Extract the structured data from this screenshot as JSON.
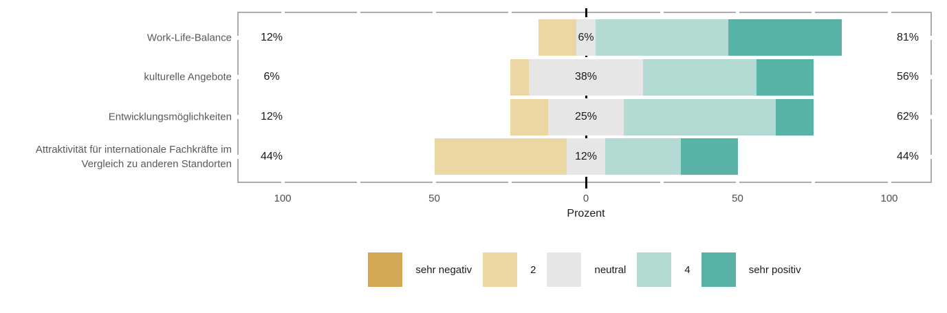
{
  "chart_data": {
    "type": "diverging_stacked_bar",
    "title": "",
    "xlabel": "Prozent",
    "grid": false,
    "legend_position": "bottom",
    "axis_range": [
      -115,
      114
    ],
    "x_ticks": {
      "values": [
        -100,
        -50,
        0,
        50,
        100
      ],
      "labels": [
        "100",
        "50",
        "0",
        "50",
        "100"
      ]
    },
    "categories": [
      "Work-Life-Balance",
      "kulturelle Angebote",
      "Entwicklungsmöglichkeiten",
      "Attraktivität für internationale Fachkräfte im Vergleich zu anderen Standorten"
    ],
    "levels": [
      {
        "name": "sehr negativ",
        "color": "#d3a855"
      },
      {
        "name": "2",
        "color": "#ebd7a4"
      },
      {
        "name": "neutral",
        "color": "#e6e6e6"
      },
      {
        "name": "4",
        "color": "#b3dbd3"
      },
      {
        "name": "sehr positiv",
        "color": "#58b2a6"
      }
    ],
    "series": [
      {
        "name": "sehr negativ",
        "values": [
          0,
          0,
          0,
          0
        ]
      },
      {
        "name": "2",
        "values": [
          12.5,
          6.25,
          12.5,
          43.75
        ]
      },
      {
        "name": "neutral",
        "values": [
          6.25,
          37.5,
          25,
          12.5
        ]
      },
      {
        "name": "4",
        "values": [
          43.75,
          37.5,
          50,
          25
        ]
      },
      {
        "name": "sehr positiv",
        "values": [
          37.5,
          18.75,
          12.5,
          18.75
        ]
      }
    ],
    "bar_labels": {
      "left": [
        "12%",
        "6%",
        "12%",
        "44%"
      ],
      "center": [
        "6%",
        "38%",
        "25%",
        "12%"
      ],
      "right": [
        "81%",
        "56%",
        "62%",
        "44%"
      ]
    },
    "style_colors": {
      "panel_border": "#ababab",
      "zero_line": "#000000"
    }
  }
}
